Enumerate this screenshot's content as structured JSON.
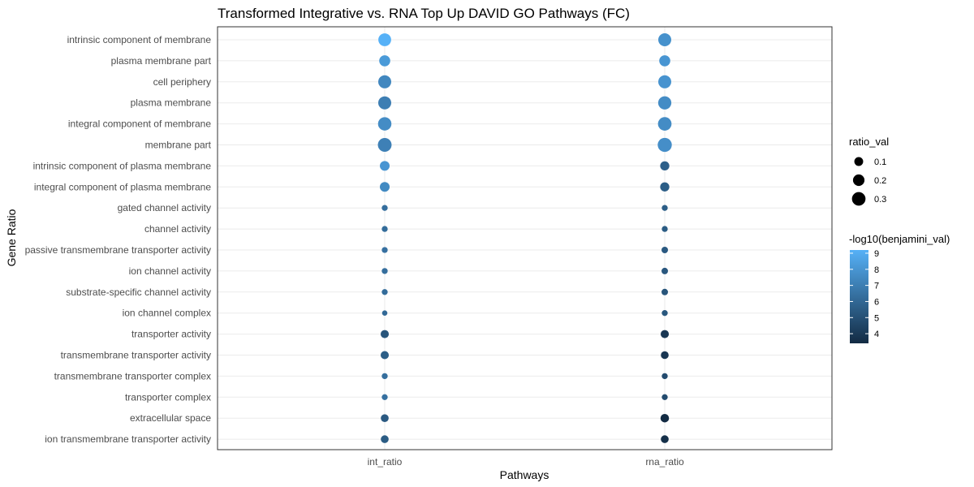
{
  "chart_data": {
    "type": "scatter",
    "title": "Transformed Integrative vs. RNA Top Up DAVID GO Pathways (FC)",
    "xlabel": "Pathways",
    "ylabel": "Gene Ratio",
    "x_categories": [
      "int_ratio",
      "rna_ratio"
    ],
    "y_categories": [
      "intrinsic component of membrane",
      "plasma membrane part",
      "cell periphery",
      "plasma membrane",
      "integral component of membrane",
      "membrane part",
      "intrinsic component of plasma membrane",
      "integral component of plasma membrane",
      "gated channel activity",
      "channel activity",
      "passive transmembrane transporter activity",
      "ion channel activity",
      "substrate-specific channel activity",
      "ion channel complex",
      "transporter activity",
      "transmembrane transporter activity",
      "transmembrane transporter complex",
      "transporter complex",
      "extracellular space",
      "ion transmembrane transporter activity"
    ],
    "series": [
      {
        "x": "int_ratio",
        "ratio_val": [
          0.26,
          0.18,
          0.27,
          0.27,
          0.29,
          0.31,
          0.13,
          0.13,
          0.03,
          0.03,
          0.03,
          0.03,
          0.03,
          0.02,
          0.08,
          0.08,
          0.03,
          0.03,
          0.07,
          0.07
        ],
        "neglog10_benjamini_val": [
          9.2,
          8.2,
          7.4,
          7.0,
          7.6,
          7.1,
          8.0,
          7.5,
          6.3,
          6.2,
          6.4,
          6.3,
          6.2,
          6.1,
          5.2,
          5.6,
          6.3,
          6.4,
          5.4,
          5.5
        ]
      },
      {
        "x": "rna_ratio",
        "ratio_val": [
          0.27,
          0.18,
          0.27,
          0.28,
          0.3,
          0.33,
          0.11,
          0.11,
          0.03,
          0.03,
          0.04,
          0.04,
          0.04,
          0.03,
          0.08,
          0.07,
          0.03,
          0.03,
          0.09,
          0.07
        ],
        "neglog10_benjamini_val": [
          7.8,
          8.0,
          7.9,
          7.6,
          7.6,
          7.7,
          5.7,
          5.6,
          5.6,
          5.5,
          5.4,
          5.3,
          5.2,
          5.3,
          3.9,
          3.9,
          4.8,
          4.8,
          3.4,
          3.6
        ]
      }
    ],
    "legend": {
      "position": "right",
      "size": {
        "title": "ratio_val",
        "breaks": [
          0.1,
          0.2,
          0.3
        ]
      },
      "color": {
        "title": "-log10(benjamini_val)",
        "breaks": [
          9,
          8,
          7,
          6,
          5,
          4
        ],
        "range": [
          3.4,
          9.2
        ],
        "low_color": "#132b43",
        "high_color": "#56b1f7"
      }
    },
    "grid": true,
    "theme": "bw"
  }
}
